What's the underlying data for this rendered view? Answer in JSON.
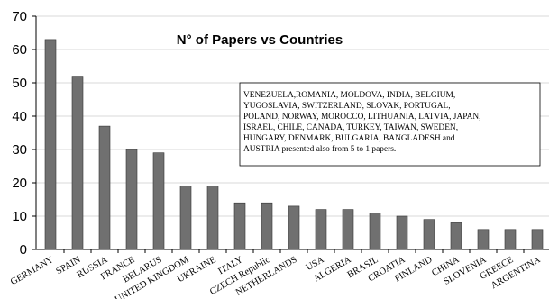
{
  "chart_data": {
    "type": "bar",
    "title": "N° of Papers vs Countries",
    "xlabel": "",
    "ylabel": "",
    "ylim": [
      0,
      70
    ],
    "yticks": [
      0,
      10,
      20,
      30,
      40,
      50,
      60,
      70
    ],
    "grid": true,
    "categories": [
      "GERMANY",
      "SPAIN",
      "RUSSIA",
      "FRANCE",
      "BELARUS",
      "UNITED KINGDOM",
      "UKRAINE",
      "ITALY",
      "CZECH Republic",
      "NETHERLANDS",
      "USA",
      "ALGERIA",
      "BRASIL",
      "CROATIA",
      "FINLAND",
      "CHINA",
      "SLOVENIA",
      "GREECE",
      "ARGENTINA"
    ],
    "values": [
      63,
      52,
      37,
      30,
      29,
      19,
      19,
      14,
      14,
      13,
      12,
      12,
      11,
      10,
      9,
      8,
      6,
      6,
      6
    ],
    "bar_color": "#707070",
    "annotation": [
      "VENEZUELA,ROMANIA, MOLDOVA, INDIA, BELGIUM,",
      "YUGOSLAVIA, SWITZERLAND, SLOVAK, PORTUGAL,",
      "POLAND, NORWAY, MOROCCO, LITHUANIA, LATVIA, JAPAN,",
      "ISRAEL, CHILE, CANADA, TURKEY, TAIWAN, SWEDEN,",
      "HUNGARY, DENMARK, BULGARIA, BANGLADESH and",
      "AUSTRIA  presented  also from 5 to 1 papers."
    ]
  }
}
